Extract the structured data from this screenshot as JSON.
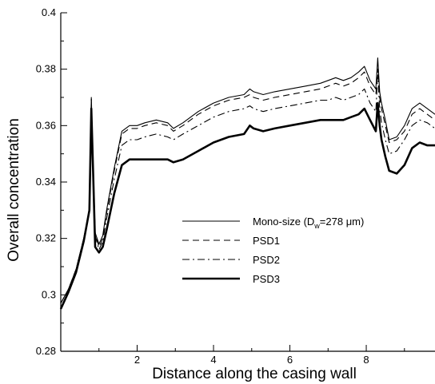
{
  "chart_data": {
    "type": "line",
    "xlabel": "Distance along the casing wall",
    "ylabel": "Overall concentration",
    "xlim": [
      0,
      9.8
    ],
    "ylim": [
      0.28,
      0.4
    ],
    "x_ticks": [
      2,
      4,
      6,
      8
    ],
    "y_ticks": [
      0.28,
      0.3,
      0.32,
      0.34,
      0.36,
      0.38,
      0.4
    ],
    "x_tick_labels": [
      "2",
      "4",
      "6",
      "8"
    ],
    "y_tick_labels": [
      "0.28",
      "0.3",
      "0.32",
      "0.34",
      "0.36",
      "0.38",
      "0.4"
    ],
    "legend_position": "center-right",
    "legend": [
      {
        "label_main": "Mono-size (D",
        "label_sub": "w",
        "label_rest": "=278 μm)"
      },
      {
        "label_main": "PSD1",
        "label_sub": "",
        "label_rest": ""
      },
      {
        "label_main": "PSD2",
        "label_sub": "",
        "label_rest": ""
      },
      {
        "label_main": "PSD3",
        "label_sub": "",
        "label_rest": ""
      }
    ],
    "series": [
      {
        "style": "solid",
        "x": [
          0,
          0.2,
          0.4,
          0.6,
          0.75,
          0.8,
          0.85,
          0.9,
          1.0,
          1.1,
          1.2,
          1.4,
          1.6,
          1.8,
          2.0,
          2.2,
          2.5,
          2.8,
          2.95,
          3.2,
          3.6,
          4.0,
          4.4,
          4.8,
          4.95,
          5.05,
          5.3,
          5.6,
          6.0,
          6.4,
          6.8,
          7.0,
          7.2,
          7.4,
          7.6,
          7.8,
          7.95,
          8.1,
          8.25,
          8.3,
          8.35,
          8.4,
          8.5,
          8.6,
          8.8,
          9.0,
          9.2,
          9.4,
          9.6,
          9.8
        ],
        "y": [
          0.297,
          0.302,
          0.309,
          0.32,
          0.33,
          0.369,
          0.345,
          0.322,
          0.318,
          0.321,
          0.33,
          0.345,
          0.358,
          0.36,
          0.36,
          0.361,
          0.362,
          0.361,
          0.359,
          0.361,
          0.365,
          0.368,
          0.37,
          0.371,
          0.373,
          0.372,
          0.371,
          0.372,
          0.373,
          0.374,
          0.375,
          0.376,
          0.377,
          0.376,
          0.377,
          0.379,
          0.381,
          0.376,
          0.373,
          0.384,
          0.372,
          0.368,
          0.362,
          0.355,
          0.356,
          0.36,
          0.366,
          0.368,
          0.366,
          0.364
        ]
      },
      {
        "style": "dashed",
        "x": [
          0,
          0.2,
          0.4,
          0.6,
          0.75,
          0.8,
          0.85,
          0.9,
          1.0,
          1.1,
          1.2,
          1.4,
          1.6,
          1.8,
          2.0,
          2.2,
          2.5,
          2.8,
          2.95,
          3.2,
          3.6,
          4.0,
          4.4,
          4.8,
          4.95,
          5.05,
          5.3,
          5.6,
          6.0,
          6.4,
          6.8,
          7.0,
          7.2,
          7.4,
          7.6,
          7.8,
          7.95,
          8.1,
          8.25,
          8.3,
          8.35,
          8.4,
          8.5,
          8.6,
          8.8,
          9.0,
          9.2,
          9.4,
          9.6,
          9.8
        ],
        "y": [
          0.297,
          0.302,
          0.309,
          0.32,
          0.33,
          0.37,
          0.345,
          0.322,
          0.317,
          0.32,
          0.329,
          0.344,
          0.357,
          0.359,
          0.359,
          0.36,
          0.361,
          0.36,
          0.358,
          0.36,
          0.364,
          0.367,
          0.369,
          0.37,
          0.371,
          0.37,
          0.369,
          0.37,
          0.371,
          0.372,
          0.373,
          0.374,
          0.375,
          0.374,
          0.375,
          0.377,
          0.379,
          0.374,
          0.371,
          0.38,
          0.37,
          0.366,
          0.36,
          0.354,
          0.355,
          0.358,
          0.364,
          0.366,
          0.364,
          0.362
        ]
      },
      {
        "style": "dashdot",
        "x": [
          0,
          0.2,
          0.4,
          0.6,
          0.75,
          0.8,
          0.85,
          0.9,
          1.0,
          1.1,
          1.2,
          1.4,
          1.6,
          1.8,
          2.0,
          2.2,
          2.5,
          2.8,
          2.95,
          3.2,
          3.6,
          4.0,
          4.4,
          4.8,
          4.95,
          5.05,
          5.3,
          5.6,
          6.0,
          6.4,
          6.8,
          7.0,
          7.2,
          7.4,
          7.6,
          7.8,
          7.95,
          8.1,
          8.25,
          8.3,
          8.35,
          8.4,
          8.5,
          8.6,
          8.8,
          9.0,
          9.2,
          9.4,
          9.6,
          9.8
        ],
        "y": [
          0.297,
          0.302,
          0.309,
          0.32,
          0.33,
          0.37,
          0.344,
          0.321,
          0.316,
          0.319,
          0.327,
          0.341,
          0.353,
          0.355,
          0.355,
          0.356,
          0.357,
          0.356,
          0.355,
          0.357,
          0.36,
          0.363,
          0.365,
          0.366,
          0.367,
          0.366,
          0.365,
          0.366,
          0.367,
          0.368,
          0.369,
          0.369,
          0.37,
          0.369,
          0.37,
          0.371,
          0.373,
          0.368,
          0.365,
          0.378,
          0.366,
          0.361,
          0.355,
          0.35,
          0.351,
          0.355,
          0.36,
          0.362,
          0.361,
          0.359
        ]
      },
      {
        "style": "thick",
        "x": [
          0,
          0.2,
          0.4,
          0.6,
          0.75,
          0.8,
          0.85,
          0.9,
          1.0,
          1.1,
          1.2,
          1.4,
          1.6,
          1.8,
          2.0,
          2.2,
          2.5,
          2.8,
          2.95,
          3.2,
          3.6,
          4.0,
          4.4,
          4.8,
          4.95,
          5.05,
          5.3,
          5.6,
          6.0,
          6.4,
          6.8,
          7.0,
          7.2,
          7.4,
          7.6,
          7.8,
          7.95,
          8.1,
          8.25,
          8.3,
          8.35,
          8.4,
          8.5,
          8.6,
          8.8,
          9.0,
          9.2,
          9.4,
          9.6,
          9.8
        ],
        "y": [
          0.295,
          0.301,
          0.308,
          0.319,
          0.33,
          0.366,
          0.342,
          0.317,
          0.315,
          0.317,
          0.323,
          0.336,
          0.346,
          0.348,
          0.348,
          0.348,
          0.348,
          0.348,
          0.347,
          0.348,
          0.351,
          0.354,
          0.356,
          0.357,
          0.36,
          0.359,
          0.358,
          0.359,
          0.36,
          0.361,
          0.362,
          0.362,
          0.362,
          0.362,
          0.363,
          0.364,
          0.366,
          0.362,
          0.358,
          0.368,
          0.36,
          0.355,
          0.349,
          0.344,
          0.343,
          0.346,
          0.352,
          0.354,
          0.353,
          0.353
        ]
      }
    ]
  }
}
